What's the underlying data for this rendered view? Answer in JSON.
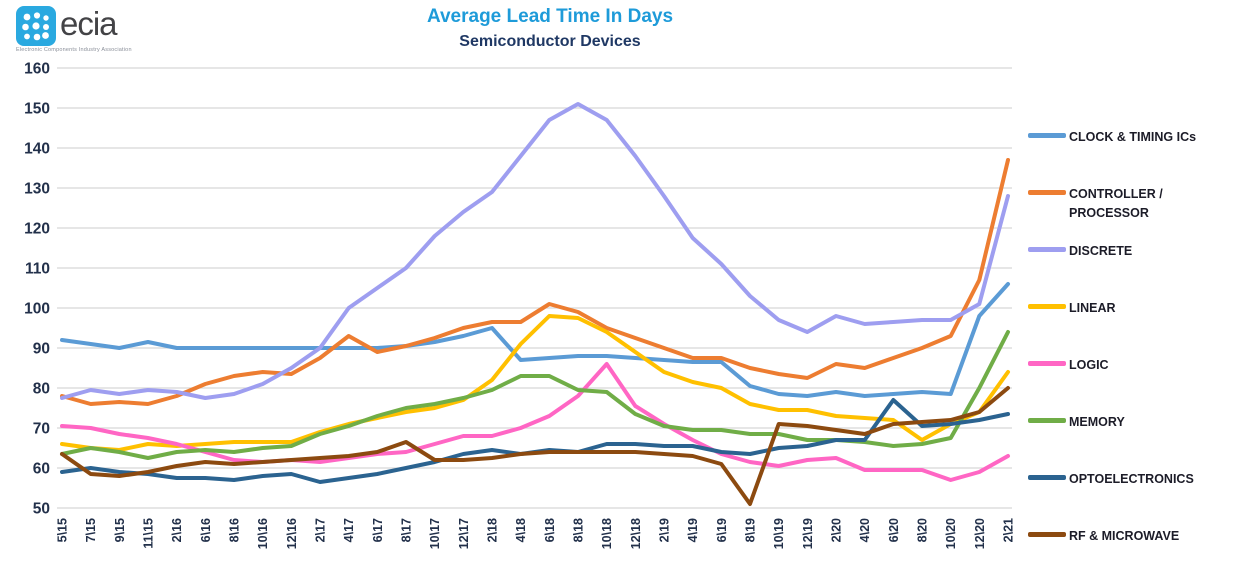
{
  "logo": {
    "brand": "ecia",
    "tagline": "Electronic Components Industry Association",
    "icon_color": "#2AA9E0",
    "text_color": "#434346"
  },
  "header": {
    "title": "Average Lead Time In Days",
    "subtitle": "Semiconductor Devices",
    "title_color": "#1E9BD9",
    "subtitle_color": "#1F3864"
  },
  "axes": {
    "tick_color": "#22304a",
    "grid_color": "#d8d8d8"
  },
  "chart_data": {
    "type": "line",
    "title": "Average Lead Time In Days",
    "subtitle": "Semiconductor Devices",
    "xlabel": "",
    "ylabel": "",
    "ylim": [
      50,
      160
    ],
    "y_ticks": [
      50,
      60,
      70,
      80,
      90,
      100,
      110,
      120,
      130,
      140,
      150,
      160
    ],
    "grid": true,
    "legend_position": "right",
    "x_labels": [
      "5\\15",
      "7\\15",
      "9\\15",
      "11\\15",
      "2\\16",
      "6\\16",
      "8\\16",
      "10\\16",
      "12\\16",
      "2\\17",
      "4\\17",
      "6\\17",
      "8\\17",
      "10\\17",
      "12\\17",
      "2\\18",
      "4\\18",
      "6\\18",
      "8\\18",
      "10\\18",
      "12\\18",
      "2\\19",
      "4\\19",
      "6\\19",
      "8\\19",
      "10\\19",
      "12\\19",
      "2\\20",
      "4\\20",
      "6\\20",
      "8\\20",
      "10\\20",
      "12\\20",
      "2\\21"
    ],
    "series": [
      {
        "name": "CLOCK & TIMING ICs",
        "color": "#5B9BD5",
        "values": [
          92,
          91,
          90,
          91.5,
          90,
          90,
          90,
          90,
          90,
          90,
          90,
          90,
          90.5,
          91.5,
          93,
          95,
          87,
          87.5,
          88,
          88,
          87.5,
          87,
          86.5,
          86.5,
          80.5,
          78.5,
          78,
          79,
          78,
          78.5,
          79,
          78.5,
          98,
          106
        ]
      },
      {
        "name": "CONTROLLER / PROCESSOR",
        "color": "#ED7D31",
        "values": [
          78,
          76,
          76.5,
          76,
          78,
          81,
          83,
          84,
          83.5,
          87.5,
          93,
          89,
          90.5,
          92.5,
          95,
          96.5,
          96.5,
          101,
          99,
          95,
          92.5,
          90,
          87.5,
          87.5,
          85,
          83.5,
          82.5,
          86,
          85,
          87.5,
          90,
          93,
          107,
          137
        ]
      },
      {
        "name": "DISCRETE",
        "color": "#9E9EF0",
        "values": [
          77.5,
          79.5,
          78.5,
          79.5,
          79,
          77.5,
          78.5,
          81,
          85,
          90,
          100,
          105,
          110,
          118,
          124,
          129,
          138,
          147,
          151,
          147,
          138,
          128,
          117.5,
          111,
          103,
          97,
          94,
          98,
          96,
          96.5,
          97,
          97,
          101,
          128
        ]
      },
      {
        "name": "LINEAR",
        "color": "#FFC000",
        "values": [
          66,
          65,
          64.5,
          66,
          65.5,
          66,
          66.5,
          66.5,
          66.5,
          69,
          71,
          72.5,
          74,
          75,
          77,
          82,
          91,
          98,
          97.5,
          94,
          89,
          84,
          81.5,
          80,
          76,
          74.5,
          74.5,
          73,
          72.5,
          72,
          67,
          71,
          74,
          84
        ]
      },
      {
        "name": "LOGIC",
        "color": "#FF66C4",
        "values": [
          70.5,
          70,
          68.5,
          67.5,
          66,
          64,
          62,
          61.5,
          62,
          61.5,
          62.5,
          63.5,
          64,
          66,
          68,
          68,
          70,
          73,
          78,
          86,
          75.5,
          71,
          67,
          63.5,
          61.5,
          60.5,
          62,
          62.5,
          59.5,
          59.5,
          59.5,
          57,
          59,
          63
        ]
      },
      {
        "name": "MEMORY",
        "color": "#70AD47",
        "values": [
          63.5,
          65,
          64,
          62.5,
          64,
          64.5,
          64,
          65,
          65.5,
          68.5,
          70.5,
          73,
          75,
          76,
          77.5,
          79.5,
          83,
          83,
          79.5,
          79,
          73.5,
          70.5,
          69.5,
          69.5,
          68.5,
          68.5,
          67,
          67,
          66.5,
          65.5,
          66,
          67.5,
          80,
          94
        ]
      },
      {
        "name": "OPTOELECTRONICS",
        "color": "#2B6390",
        "values": [
          59,
          60,
          59,
          58.5,
          57.5,
          57.5,
          57,
          58,
          58.5,
          56.5,
          57.5,
          58.5,
          60,
          61.5,
          63.5,
          64.5,
          63.5,
          64.5,
          64,
          66,
          66,
          65.5,
          65.5,
          64,
          63.5,
          65,
          65.5,
          67,
          67,
          77,
          70.5,
          71,
          72,
          73.5
        ]
      },
      {
        "name": "RF & MICROWAVE",
        "color": "#8C4A10",
        "values": [
          63.5,
          58.5,
          58,
          59,
          60.5,
          61.5,
          61,
          61.5,
          62,
          62.5,
          63,
          64,
          66.5,
          62,
          62,
          62.5,
          63.5,
          64,
          64,
          64,
          64,
          63.5,
          63,
          61,
          51,
          71,
          70.5,
          69.5,
          68.5,
          71,
          71.5,
          72,
          74,
          80
        ]
      }
    ]
  }
}
